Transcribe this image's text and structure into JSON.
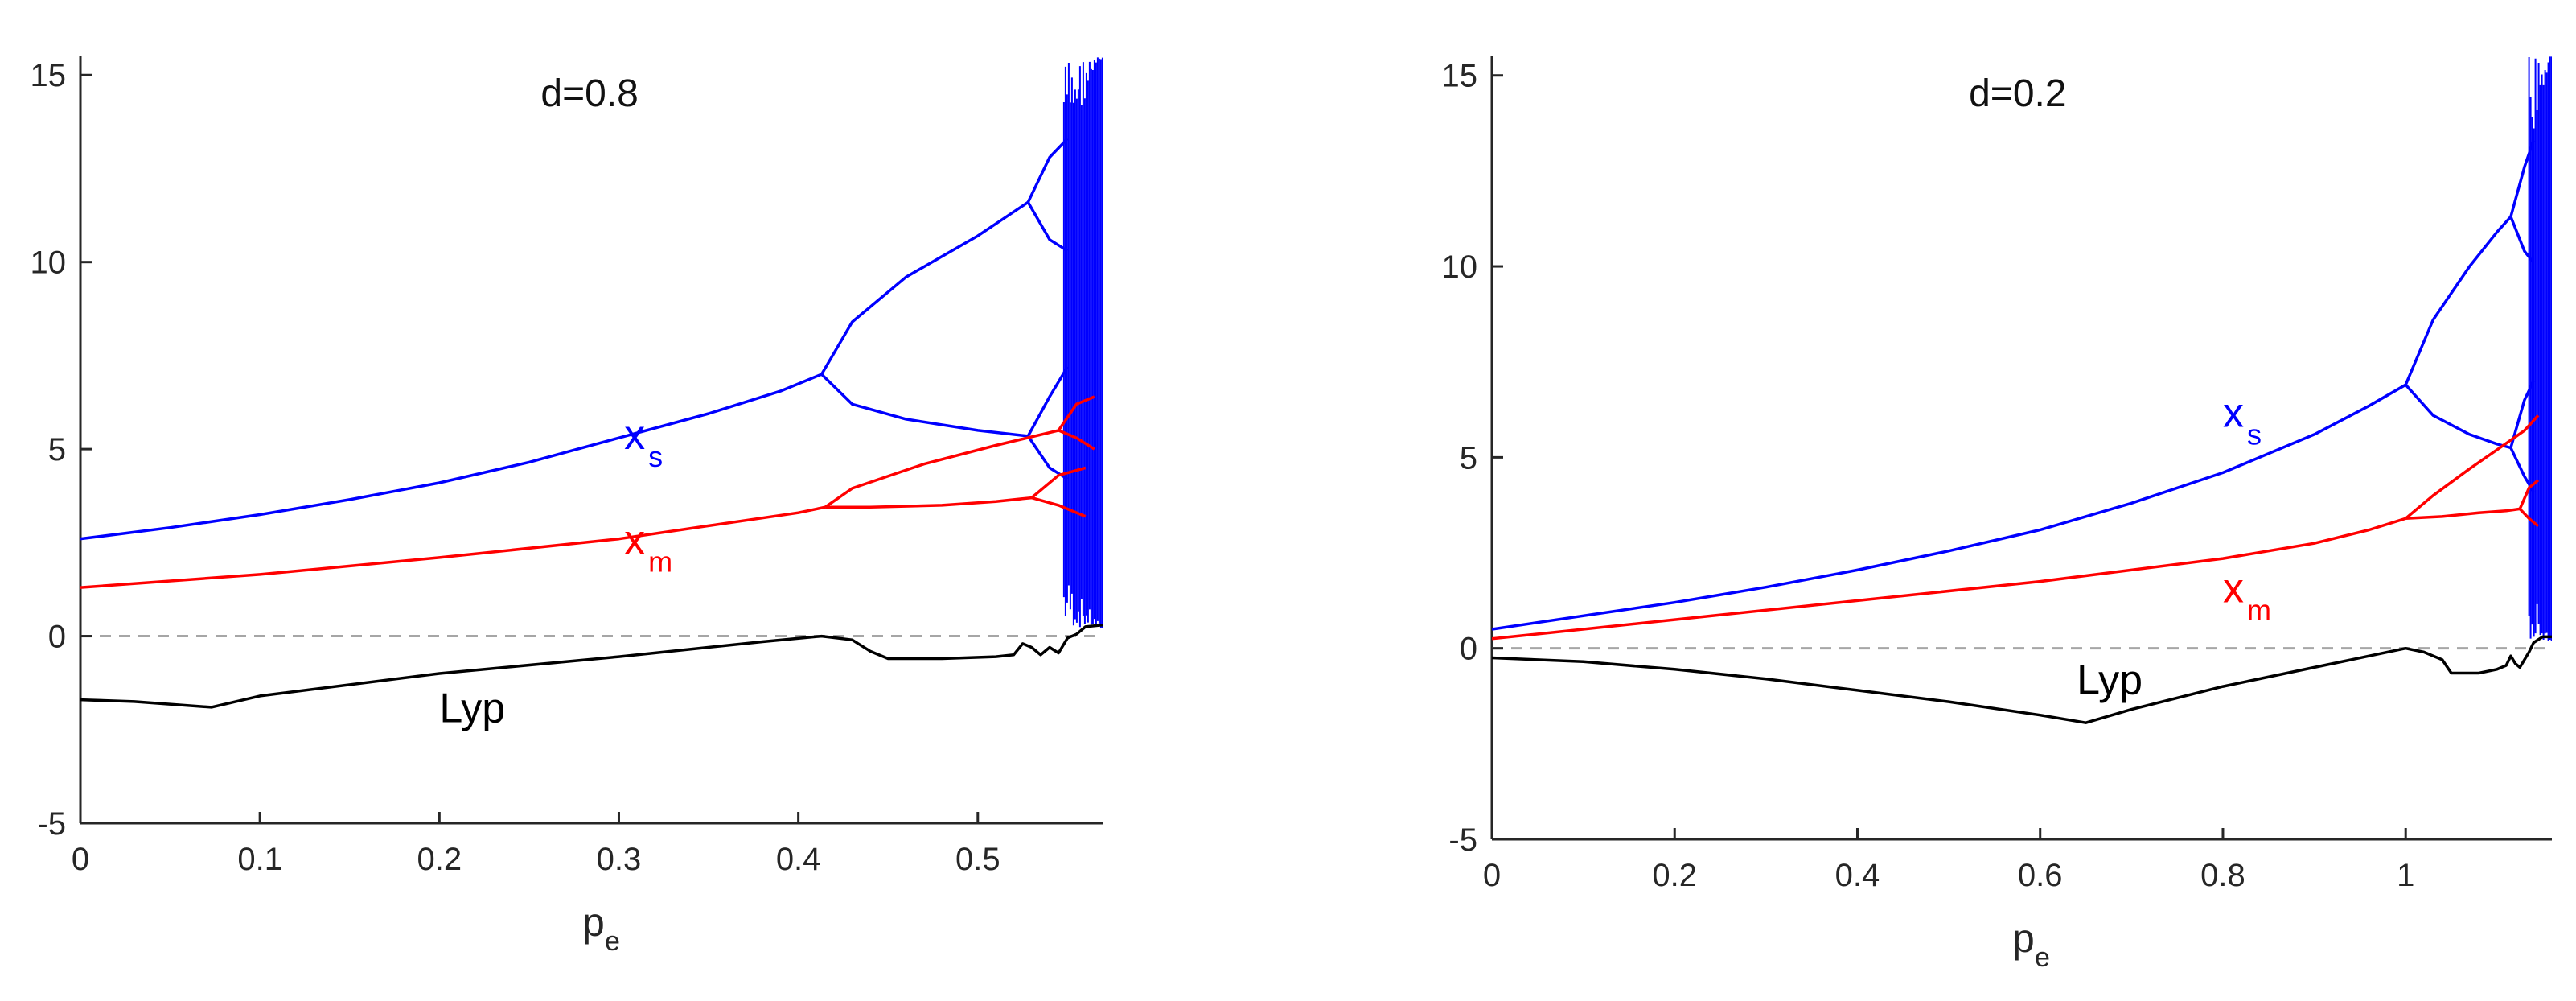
{
  "chart_data": [
    {
      "type": "line",
      "title": "",
      "annotation": "d=0.8",
      "xlabel": "p",
      "xlabel_sub": "e",
      "ylabel": "",
      "xlim": [
        0,
        0.57
      ],
      "ylim": [
        -5,
        15.5
      ],
      "xticks": [
        0,
        0.1,
        0.2,
        0.3,
        0.4,
        0.5
      ],
      "xtick_labels": [
        "0",
        "0.1",
        "0.2",
        "0.3",
        "0.4",
        "0.5"
      ],
      "yticks": [
        -5,
        0,
        5,
        10,
        15
      ],
      "ytick_labels": [
        "-5",
        "0",
        "5",
        "10",
        "15"
      ],
      "grid": false,
      "zero_line": {
        "y": 0,
        "style": "dashed",
        "color": "#a6a6a6"
      },
      "colors": {
        "xs": "#0000ff",
        "xm": "#ff0000",
        "lyp": "#000000"
      },
      "labels": [
        {
          "series": "xs",
          "text": "x",
          "sub": "s",
          "x": 0.303,
          "y": 5.0
        },
        {
          "series": "xm",
          "text": "x",
          "sub": "m",
          "x": 0.303,
          "y": 2.2
        },
        {
          "series": "lyp",
          "text": "Lyp",
          "x": 0.2,
          "y": -2.3
        }
      ],
      "series": [
        {
          "id": "xs",
          "branches": [
            [
              [
                0,
                2.6
              ],
              [
                0.05,
                2.9
              ],
              [
                0.1,
                3.25
              ],
              [
                0.15,
                3.65
              ],
              [
                0.2,
                4.1
              ],
              [
                0.25,
                4.65
              ],
              [
                0.3,
                5.3
              ],
              [
                0.35,
                5.95
              ],
              [
                0.39,
                6.55
              ],
              [
                0.413,
                7.0
              ]
            ],
            [
              [
                0.413,
                7.0
              ],
              [
                0.43,
                8.4
              ],
              [
                0.46,
                9.6
              ],
              [
                0.5,
                10.7
              ],
              [
                0.528,
                11.6
              ]
            ],
            [
              [
                0.413,
                7.0
              ],
              [
                0.43,
                6.2
              ],
              [
                0.46,
                5.8
              ],
              [
                0.5,
                5.5
              ],
              [
                0.528,
                5.35
              ]
            ],
            [
              [
                0.528,
                11.6
              ],
              [
                0.54,
                12.8
              ],
              [
                0.55,
                13.3
              ]
            ],
            [
              [
                0.528,
                11.6
              ],
              [
                0.54,
                10.6
              ],
              [
                0.55,
                10.3
              ]
            ],
            [
              [
                0.528,
                5.35
              ],
              [
                0.54,
                6.4
              ],
              [
                0.55,
                7.2
              ]
            ],
            [
              [
                0.528,
                5.35
              ],
              [
                0.54,
                4.5
              ],
              [
                0.55,
                4.2
              ]
            ]
          ]
        },
        {
          "id": "xm",
          "branches": [
            [
              [
                0,
                1.3
              ],
              [
                0.1,
                1.65
              ],
              [
                0.2,
                2.1
              ],
              [
                0.3,
                2.6
              ],
              [
                0.35,
                2.95
              ],
              [
                0.4,
                3.3
              ],
              [
                0.415,
                3.45
              ]
            ],
            [
              [
                0.415,
                3.45
              ],
              [
                0.43,
                3.95
              ],
              [
                0.47,
                4.6
              ],
              [
                0.51,
                5.1
              ],
              [
                0.545,
                5.5
              ]
            ],
            [
              [
                0.415,
                3.45
              ],
              [
                0.44,
                3.45
              ],
              [
                0.48,
                3.5
              ],
              [
                0.51,
                3.6
              ],
              [
                0.53,
                3.7
              ]
            ],
            [
              [
                0.545,
                5.5
              ],
              [
                0.555,
                6.2
              ],
              [
                0.565,
                6.4
              ]
            ],
            [
              [
                0.545,
                5.5
              ],
              [
                0.555,
                5.3
              ],
              [
                0.565,
                5.0
              ]
            ],
            [
              [
                0.53,
                3.7
              ],
              [
                0.545,
                4.3
              ],
              [
                0.56,
                4.5
              ]
            ],
            [
              [
                0.53,
                3.7
              ],
              [
                0.545,
                3.5
              ],
              [
                0.56,
                3.2
              ]
            ]
          ]
        },
        {
          "id": "lyp",
          "branches": [
            [
              [
                0,
                -1.7
              ],
              [
                0.03,
                -1.75
              ],
              [
                0.073,
                -1.9
              ],
              [
                0.1,
                -1.6
              ],
              [
                0.2,
                -1.0
              ],
              [
                0.3,
                -0.55
              ],
              [
                0.38,
                -0.15
              ],
              [
                0.413,
                0.0
              ],
              [
                0.43,
                -0.1
              ],
              [
                0.44,
                -0.4
              ],
              [
                0.45,
                -0.6
              ],
              [
                0.48,
                -0.6
              ],
              [
                0.51,
                -0.55
              ],
              [
                0.52,
                -0.5
              ],
              [
                0.525,
                -0.2
              ],
              [
                0.53,
                -0.3
              ],
              [
                0.535,
                -0.5
              ],
              [
                0.54,
                -0.3
              ],
              [
                0.545,
                -0.45
              ],
              [
                0.55,
                -0.05
              ],
              [
                0.555,
                0.05
              ],
              [
                0.56,
                0.25
              ],
              [
                0.57,
                0.3
              ]
            ]
          ]
        }
      ],
      "chaotic_band": {
        "series": "xs",
        "x": [
          0.548,
          0.57
        ],
        "ylim": [
          0.2,
          15.5
        ]
      }
    },
    {
      "type": "line",
      "title": "",
      "annotation": "d=0.2",
      "xlabel": "p",
      "xlabel_sub": "e",
      "ylabel": "",
      "xlim": [
        0,
        1.16
      ],
      "ylim": [
        -5,
        15.5
      ],
      "xticks": [
        0,
        0.2,
        0.4,
        0.6,
        0.8,
        1
      ],
      "xtick_labels": [
        "0",
        "0.2",
        "0.4",
        "0.6",
        "0.8",
        "1"
      ],
      "yticks": [
        -5,
        0,
        5,
        10,
        15
      ],
      "ytick_labels": [
        "-5",
        "0",
        "5",
        "10",
        "15"
      ],
      "grid": false,
      "zero_line": {
        "y": 0,
        "style": "dashed",
        "color": "#a6a6a6"
      },
      "colors": {
        "xs": "#0000ff",
        "xm": "#ff0000",
        "lyp": "#000000"
      },
      "labels": [
        {
          "series": "xs",
          "text": "x",
          "sub": "s",
          "x": 0.8,
          "y": 5.8
        },
        {
          "series": "xm",
          "text": "x",
          "sub": "m",
          "x": 0.8,
          "y": 1.2
        },
        {
          "series": "lyp",
          "text": "Lyp",
          "x": 0.64,
          "y": -1.2
        }
      ],
      "series": [
        {
          "id": "xs",
          "branches": [
            [
              [
                0,
                0.5
              ],
              [
                0.1,
                0.85
              ],
              [
                0.2,
                1.2
              ],
              [
                0.3,
                1.6
              ],
              [
                0.4,
                2.05
              ],
              [
                0.5,
                2.55
              ],
              [
                0.6,
                3.1
              ],
              [
                0.7,
                3.8
              ],
              [
                0.8,
                4.6
              ],
              [
                0.9,
                5.6
              ],
              [
                0.96,
                6.35
              ],
              [
                1.0,
                6.9
              ]
            ],
            [
              [
                1.0,
                6.9
              ],
              [
                1.03,
                8.6
              ],
              [
                1.07,
                10.0
              ],
              [
                1.1,
                10.9
              ],
              [
                1.115,
                11.3
              ]
            ],
            [
              [
                1.0,
                6.9
              ],
              [
                1.03,
                6.1
              ],
              [
                1.07,
                5.6
              ],
              [
                1.1,
                5.35
              ],
              [
                1.115,
                5.25
              ]
            ],
            [
              [
                1.115,
                11.3
              ],
              [
                1.13,
                12.6
              ],
              [
                1.14,
                13.3
              ]
            ],
            [
              [
                1.115,
                11.3
              ],
              [
                1.13,
                10.4
              ],
              [
                1.14,
                10.1
              ]
            ],
            [
              [
                1.115,
                5.25
              ],
              [
                1.13,
                6.5
              ],
              [
                1.14,
                7.0
              ]
            ],
            [
              [
                1.115,
                5.25
              ],
              [
                1.13,
                4.5
              ],
              [
                1.14,
                4.1
              ]
            ]
          ]
        },
        {
          "id": "xm",
          "branches": [
            [
              [
                0,
                0.25
              ],
              [
                0.2,
                0.75
              ],
              [
                0.4,
                1.25
              ],
              [
                0.6,
                1.75
              ],
              [
                0.8,
                2.35
              ],
              [
                0.9,
                2.75
              ],
              [
                0.96,
                3.1
              ],
              [
                1.0,
                3.4
              ]
            ],
            [
              [
                1.0,
                3.4
              ],
              [
                1.03,
                4.0
              ],
              [
                1.07,
                4.7
              ],
              [
                1.1,
                5.2
              ],
              [
                1.13,
                5.7
              ],
              [
                1.145,
                6.1
              ]
            ],
            [
              [
                1.0,
                3.4
              ],
              [
                1.04,
                3.45
              ],
              [
                1.08,
                3.55
              ],
              [
                1.11,
                3.6
              ],
              [
                1.125,
                3.65
              ]
            ],
            [
              [
                1.125,
                3.65
              ],
              [
                1.135,
                4.2
              ],
              [
                1.145,
                4.4
              ]
            ],
            [
              [
                1.125,
                3.65
              ],
              [
                1.135,
                3.4
              ],
              [
                1.145,
                3.2
              ]
            ]
          ]
        },
        {
          "id": "lyp",
          "branches": [
            [
              [
                0,
                -0.25
              ],
              [
                0.1,
                -0.35
              ],
              [
                0.2,
                -0.55
              ],
              [
                0.3,
                -0.8
              ],
              [
                0.4,
                -1.1
              ],
              [
                0.5,
                -1.4
              ],
              [
                0.6,
                -1.75
              ],
              [
                0.65,
                -1.95
              ],
              [
                0.7,
                -1.6
              ],
              [
                0.8,
                -1.0
              ],
              [
                0.9,
                -0.5
              ],
              [
                0.96,
                -0.2
              ],
              [
                1.0,
                0.0
              ],
              [
                1.02,
                -0.1
              ],
              [
                1.04,
                -0.3
              ],
              [
                1.05,
                -0.65
              ],
              [
                1.08,
                -0.65
              ],
              [
                1.1,
                -0.55
              ],
              [
                1.11,
                -0.45
              ],
              [
                1.115,
                -0.2
              ],
              [
                1.12,
                -0.4
              ],
              [
                1.125,
                -0.5
              ],
              [
                1.13,
                -0.3
              ],
              [
                1.135,
                -0.1
              ],
              [
                1.14,
                0.15
              ],
              [
                1.15,
                0.3
              ],
              [
                1.16,
                0.3
              ]
            ]
          ]
        }
      ],
      "chaotic_band": {
        "series": "xs",
        "x": [
          1.135,
          1.16
        ],
        "ylim": [
          0.2,
          15.5
        ]
      }
    }
  ]
}
